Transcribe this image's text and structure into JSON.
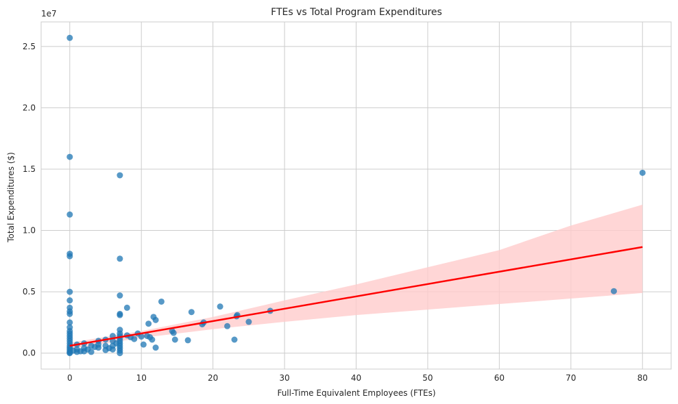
{
  "chart_data": {
    "type": "scatter",
    "title": "FTEs vs Total Program Expenditures",
    "xlabel": "Full-Time Equivalent Employees (FTEs)",
    "ylabel": "Total Expenditures ($)",
    "y_offset_label": "1e7",
    "xlim": [
      -4,
      84
    ],
    "ylim": [
      -1300000,
      27000000
    ],
    "xticks": [
      0,
      10,
      20,
      30,
      40,
      50,
      60,
      70,
      80
    ],
    "xtick_labels": [
      "0",
      "10",
      "20",
      "30",
      "40",
      "50",
      "60",
      "70",
      "80"
    ],
    "yticks": [
      0,
      5000000,
      10000000,
      15000000,
      20000000,
      25000000
    ],
    "ytick_labels": [
      "0.0",
      "0.5",
      "1.0",
      "1.5",
      "2.0",
      "2.5"
    ],
    "grid": true,
    "colors": {
      "points": "#1f77b4",
      "regression_line": "#ff0000",
      "confidence_band": "#ffcccc",
      "grid": "#cccccc",
      "frame": "#cccccc"
    },
    "regression": {
      "x": [
        0,
        80
      ],
      "y": [
        600000,
        8650000
      ],
      "ci_x": [
        0,
        10,
        20,
        30,
        40,
        50,
        60,
        70,
        80
      ],
      "ci_lower": [
        350000,
        1250000,
        1950000,
        2550000,
        3100000,
        3550000,
        4000000,
        4450000,
        4900000
      ],
      "ci_upper": [
        850000,
        1800000,
        2950000,
        4300000,
        5600000,
        7000000,
        8400000,
        10400000,
        12100000
      ]
    },
    "points": [
      {
        "x": 0,
        "y": 25700000
      },
      {
        "x": 0,
        "y": 16000000
      },
      {
        "x": 0,
        "y": 11300000
      },
      {
        "x": 0,
        "y": 8100000
      },
      {
        "x": 0,
        "y": 7900000
      },
      {
        "x": 0,
        "y": 5000000
      },
      {
        "x": 0,
        "y": 4300000
      },
      {
        "x": 0,
        "y": 3700000
      },
      {
        "x": 0,
        "y": 3400000
      },
      {
        "x": 0,
        "y": 3200000
      },
      {
        "x": 0,
        "y": 2500000
      },
      {
        "x": 0,
        "y": 2100000
      },
      {
        "x": 0,
        "y": 1800000
      },
      {
        "x": 0,
        "y": 1600000
      },
      {
        "x": 0,
        "y": 1400000
      },
      {
        "x": 0,
        "y": 1200000
      },
      {
        "x": 0,
        "y": 1000000
      },
      {
        "x": 0,
        "y": 800000
      },
      {
        "x": 0,
        "y": 600000
      },
      {
        "x": 0,
        "y": 450000
      },
      {
        "x": 0,
        "y": 300000
      },
      {
        "x": 0,
        "y": 150000
      },
      {
        "x": 0,
        "y": 50000
      },
      {
        "x": 0,
        "y": 0
      },
      {
        "x": 0.5,
        "y": 200000
      },
      {
        "x": 1,
        "y": 700000
      },
      {
        "x": 1,
        "y": 300000
      },
      {
        "x": 1,
        "y": 100000
      },
      {
        "x": 1.5,
        "y": 150000
      },
      {
        "x": 2,
        "y": 800000
      },
      {
        "x": 2,
        "y": 400000
      },
      {
        "x": 2,
        "y": 150000
      },
      {
        "x": 2.5,
        "y": 300000
      },
      {
        "x": 3,
        "y": 600000
      },
      {
        "x": 3,
        "y": 100000
      },
      {
        "x": 3.5,
        "y": 500000
      },
      {
        "x": 4,
        "y": 1000000
      },
      {
        "x": 4,
        "y": 700000
      },
      {
        "x": 4,
        "y": 450000
      },
      {
        "x": 5,
        "y": 1100000
      },
      {
        "x": 5,
        "y": 600000
      },
      {
        "x": 5,
        "y": 250000
      },
      {
        "x": 5.5,
        "y": 400000
      },
      {
        "x": 6,
        "y": 1400000
      },
      {
        "x": 6,
        "y": 1000000
      },
      {
        "x": 6,
        "y": 600000
      },
      {
        "x": 6,
        "y": 300000
      },
      {
        "x": 6.5,
        "y": 800000
      },
      {
        "x": 7,
        "y": 14500000
      },
      {
        "x": 7,
        "y": 7700000
      },
      {
        "x": 7,
        "y": 4700000
      },
      {
        "x": 7,
        "y": 3200000
      },
      {
        "x": 7,
        "y": 3100000
      },
      {
        "x": 7,
        "y": 1900000
      },
      {
        "x": 7,
        "y": 1600000
      },
      {
        "x": 7,
        "y": 1400000
      },
      {
        "x": 7,
        "y": 1200000
      },
      {
        "x": 7,
        "y": 1000000
      },
      {
        "x": 7,
        "y": 800000
      },
      {
        "x": 7,
        "y": 600000
      },
      {
        "x": 7,
        "y": 400000
      },
      {
        "x": 7,
        "y": 200000
      },
      {
        "x": 7,
        "y": 0
      },
      {
        "x": 8,
        "y": 3700000
      },
      {
        "x": 8,
        "y": 1450000
      },
      {
        "x": 8.5,
        "y": 1300000
      },
      {
        "x": 9,
        "y": 1150000
      },
      {
        "x": 9.5,
        "y": 1600000
      },
      {
        "x": 10,
        "y": 1350000
      },
      {
        "x": 10.3,
        "y": 700000
      },
      {
        "x": 10.8,
        "y": 1400000
      },
      {
        "x": 11,
        "y": 2400000
      },
      {
        "x": 11.2,
        "y": 1300000
      },
      {
        "x": 11.5,
        "y": 1100000
      },
      {
        "x": 11.7,
        "y": 2950000
      },
      {
        "x": 12,
        "y": 2700000
      },
      {
        "x": 12,
        "y": 450000
      },
      {
        "x": 12.8,
        "y": 4200000
      },
      {
        "x": 14.3,
        "y": 1800000
      },
      {
        "x": 14.5,
        "y": 1650000
      },
      {
        "x": 14.7,
        "y": 1100000
      },
      {
        "x": 16.5,
        "y": 1050000
      },
      {
        "x": 17,
        "y": 3350000
      },
      {
        "x": 18.5,
        "y": 2350000
      },
      {
        "x": 18.7,
        "y": 2500000
      },
      {
        "x": 21,
        "y": 3800000
      },
      {
        "x": 22,
        "y": 2200000
      },
      {
        "x": 23,
        "y": 1100000
      },
      {
        "x": 23.3,
        "y": 3000000
      },
      {
        "x": 23.4,
        "y": 3100000
      },
      {
        "x": 25,
        "y": 2550000
      },
      {
        "x": 28,
        "y": 3450000
      },
      {
        "x": 76,
        "y": 5050000
      },
      {
        "x": 80,
        "y": 14700000
      }
    ]
  }
}
